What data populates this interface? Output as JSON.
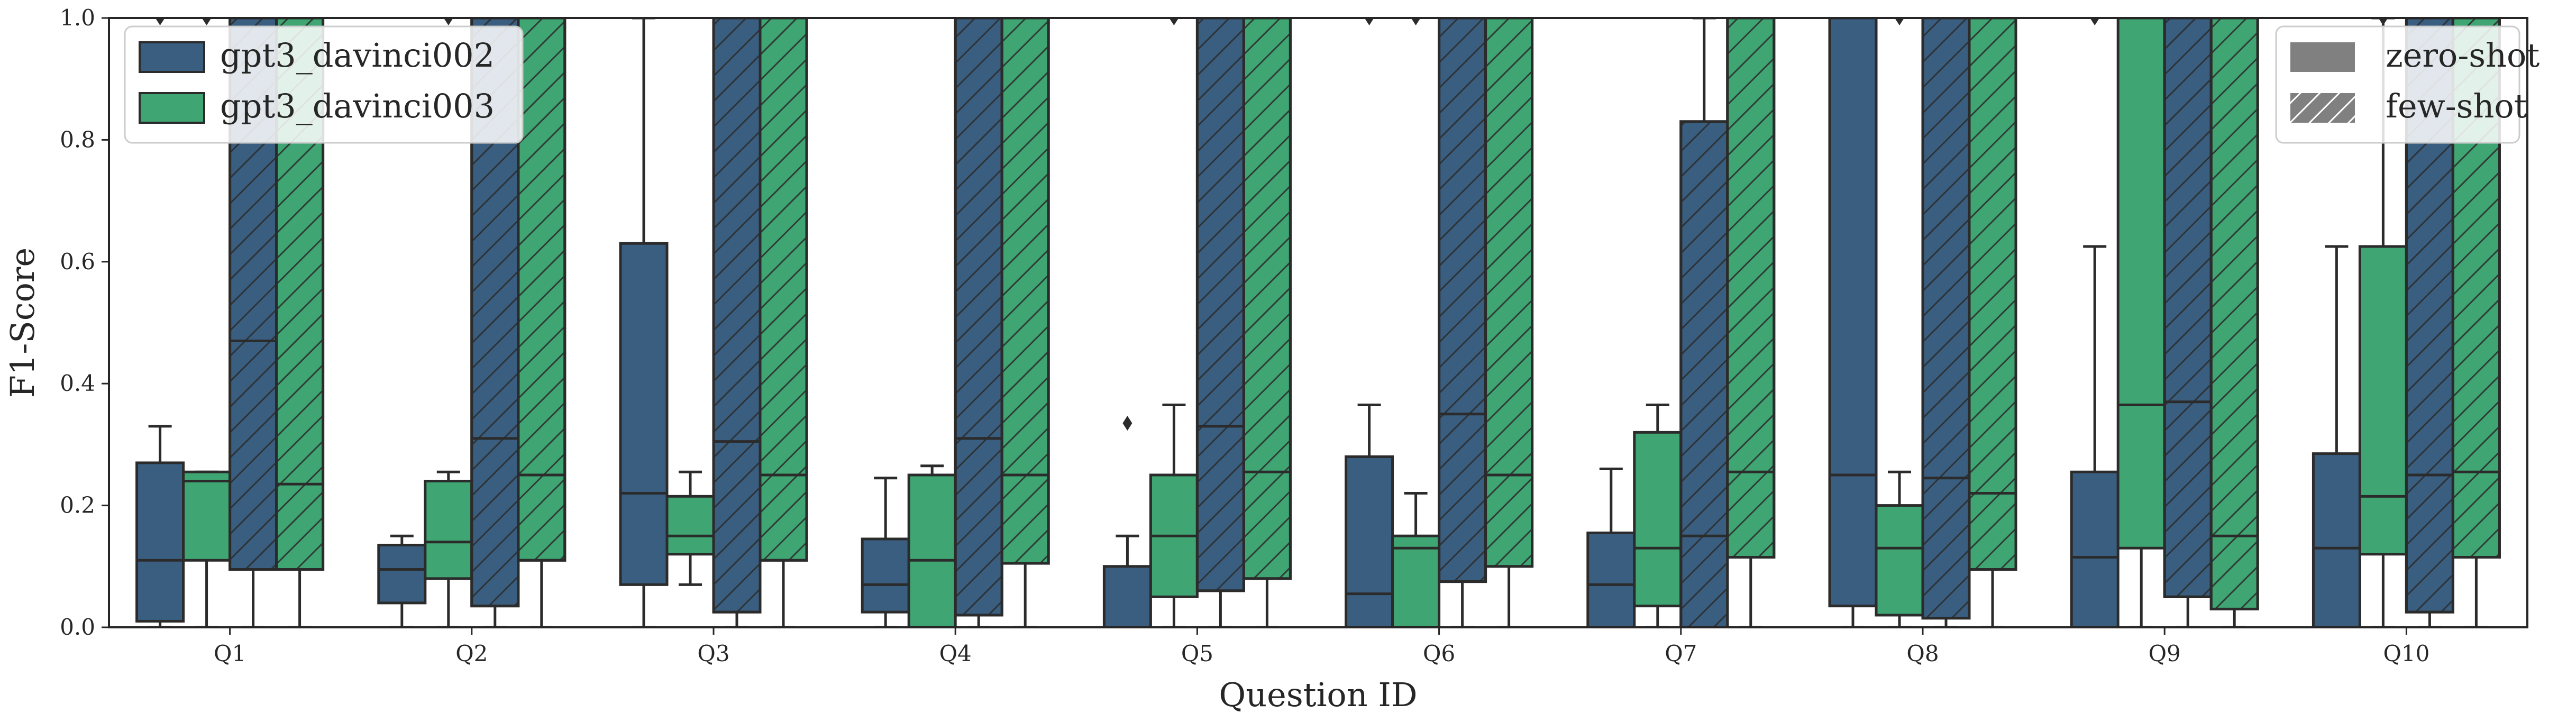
{
  "chart_data": {
    "type": "box",
    "xlabel": "Question ID",
    "ylabel": "F1-Score",
    "ylim": [
      0,
      1
    ],
    "yticks": [
      "0.0",
      "0.2",
      "0.4",
      "0.6",
      "0.8",
      "1.0"
    ],
    "categories": [
      "Q1",
      "Q2",
      "Q3",
      "Q4",
      "Q5",
      "Q6",
      "Q7",
      "Q8",
      "Q9",
      "Q10"
    ],
    "grid": false,
    "legend_models": {
      "placement": "top-left",
      "entries": [
        {
          "name": "gpt3_davinci002",
          "color": "#3a5e80"
        },
        {
          "name": "gpt3_davinci003",
          "color": "#3fa673"
        }
      ]
    },
    "legend_setting": {
      "placement": "top-right",
      "entries": [
        {
          "name": "zero-shot",
          "pattern": "solid"
        },
        {
          "name": "few-shot",
          "pattern": "hatched"
        }
      ]
    },
    "series": [
      {
        "model": "gpt3_davinci002",
        "setting": "zero-shot",
        "boxes": [
          {
            "whislo": 0.0,
            "q1": 0.01,
            "med": 0.11,
            "q3": 0.27,
            "whishi": 0.33,
            "fliers": [
              1.0
            ]
          },
          {
            "whislo": 0.0,
            "q1": 0.04,
            "med": 0.095,
            "q3": 0.135,
            "whishi": 0.15,
            "fliers": []
          },
          {
            "whislo": 0.0,
            "q1": 0.07,
            "med": 0.22,
            "q3": 0.63,
            "whishi": 1.0,
            "fliers": []
          },
          {
            "whislo": 0.0,
            "q1": 0.025,
            "med": 0.07,
            "q3": 0.145,
            "whishi": 0.245,
            "fliers": []
          },
          {
            "whislo": 0.0,
            "q1": 0.0,
            "med": 0.0,
            "q3": 0.1,
            "whishi": 0.15,
            "fliers": [
              0.335
            ]
          },
          {
            "whislo": 0.0,
            "q1": 0.0,
            "med": 0.055,
            "q3": 0.28,
            "whishi": 0.365,
            "fliers": [
              1.0
            ]
          },
          {
            "whislo": 0.0,
            "q1": 0.0,
            "med": 0.07,
            "q3": 0.155,
            "whishi": 0.26,
            "fliers": []
          },
          {
            "whislo": 0.0,
            "q1": 0.035,
            "med": 0.25,
            "q3": 1.0,
            "whishi": 1.0,
            "fliers": []
          },
          {
            "whislo": 0.0,
            "q1": 0.0,
            "med": 0.115,
            "q3": 0.255,
            "whishi": 0.625,
            "fliers": [
              1.0
            ]
          },
          {
            "whislo": 0.0,
            "q1": 0.0,
            "med": 0.13,
            "q3": 0.285,
            "whishi": 0.625,
            "fliers": []
          }
        ]
      },
      {
        "model": "gpt3_davinci003",
        "setting": "zero-shot",
        "boxes": [
          {
            "whislo": 0.0,
            "q1": 0.11,
            "med": 0.24,
            "q3": 0.255,
            "whishi": 0.255,
            "fliers": [
              1.0
            ]
          },
          {
            "whislo": 0.0,
            "q1": 0.08,
            "med": 0.14,
            "q3": 0.24,
            "whishi": 0.255,
            "fliers": [
              1.0
            ]
          },
          {
            "whislo": 0.07,
            "q1": 0.12,
            "med": 0.15,
            "q3": 0.215,
            "whishi": 0.255,
            "fliers": []
          },
          {
            "whislo": 0.0,
            "q1": 0.0,
            "med": 0.11,
            "q3": 0.25,
            "whishi": 0.265,
            "fliers": []
          },
          {
            "whislo": 0.0,
            "q1": 0.05,
            "med": 0.15,
            "q3": 0.25,
            "whishi": 0.365,
            "fliers": [
              1.0
            ]
          },
          {
            "whislo": 0.0,
            "q1": 0.0,
            "med": 0.13,
            "q3": 0.15,
            "whishi": 0.22,
            "fliers": [
              1.0
            ]
          },
          {
            "whislo": 0.0,
            "q1": 0.035,
            "med": 0.13,
            "q3": 0.32,
            "whishi": 0.365,
            "fliers": []
          },
          {
            "whislo": 0.0,
            "q1": 0.02,
            "med": 0.13,
            "q3": 0.2,
            "whishi": 0.255,
            "fliers": [
              1.0
            ]
          },
          {
            "whislo": 0.0,
            "q1": 0.13,
            "med": 0.365,
            "q3": 1.0,
            "whishi": 1.0,
            "fliers": []
          },
          {
            "whislo": 0.0,
            "q1": 0.12,
            "med": 0.215,
            "q3": 0.625,
            "whishi": 1.0,
            "fliers": [
              1.0
            ]
          }
        ]
      },
      {
        "model": "gpt3_davinci002",
        "setting": "few-shot",
        "boxes": [
          {
            "whislo": 0.0,
            "q1": 0.095,
            "med": 0.47,
            "q3": 1.0,
            "whishi": 1.0,
            "fliers": []
          },
          {
            "whislo": 0.0,
            "q1": 0.035,
            "med": 0.31,
            "q3": 1.0,
            "whishi": 1.0,
            "fliers": []
          },
          {
            "whislo": 0.0,
            "q1": 0.025,
            "med": 0.305,
            "q3": 1.0,
            "whishi": 1.0,
            "fliers": []
          },
          {
            "whislo": 0.0,
            "q1": 0.02,
            "med": 0.31,
            "q3": 1.0,
            "whishi": 1.0,
            "fliers": []
          },
          {
            "whislo": 0.0,
            "q1": 0.06,
            "med": 0.33,
            "q3": 1.0,
            "whishi": 1.0,
            "fliers": []
          },
          {
            "whislo": 0.0,
            "q1": 0.075,
            "med": 0.35,
            "q3": 1.0,
            "whishi": 1.0,
            "fliers": []
          },
          {
            "whislo": 0.0,
            "q1": 0.0,
            "med": 0.15,
            "q3": 0.83,
            "whishi": 1.0,
            "fliers": []
          },
          {
            "whislo": 0.0,
            "q1": 0.015,
            "med": 0.245,
            "q3": 1.0,
            "whishi": 1.0,
            "fliers": []
          },
          {
            "whislo": 0.0,
            "q1": 0.05,
            "med": 0.37,
            "q3": 1.0,
            "whishi": 1.0,
            "fliers": []
          },
          {
            "whislo": 0.0,
            "q1": 0.025,
            "med": 0.25,
            "q3": 1.0,
            "whishi": 1.0,
            "fliers": []
          }
        ]
      },
      {
        "model": "gpt3_davinci003",
        "setting": "few-shot",
        "boxes": [
          {
            "whislo": 0.0,
            "q1": 0.095,
            "med": 0.235,
            "q3": 1.0,
            "whishi": 1.0,
            "fliers": []
          },
          {
            "whislo": 0.0,
            "q1": 0.11,
            "med": 0.25,
            "q3": 1.0,
            "whishi": 1.0,
            "fliers": []
          },
          {
            "whislo": 0.0,
            "q1": 0.11,
            "med": 0.25,
            "q3": 1.0,
            "whishi": 1.0,
            "fliers": []
          },
          {
            "whislo": 0.0,
            "q1": 0.105,
            "med": 0.25,
            "q3": 1.0,
            "whishi": 1.0,
            "fliers": []
          },
          {
            "whislo": 0.0,
            "q1": 0.08,
            "med": 0.255,
            "q3": 1.0,
            "whishi": 1.0,
            "fliers": []
          },
          {
            "whislo": 0.0,
            "q1": 0.1,
            "med": 0.25,
            "q3": 1.0,
            "whishi": 1.0,
            "fliers": []
          },
          {
            "whislo": 0.0,
            "q1": 0.115,
            "med": 0.255,
            "q3": 1.0,
            "whishi": 1.0,
            "fliers": []
          },
          {
            "whislo": 0.0,
            "q1": 0.095,
            "med": 0.22,
            "q3": 1.0,
            "whishi": 1.0,
            "fliers": []
          },
          {
            "whislo": 0.0,
            "q1": 0.03,
            "med": 0.15,
            "q3": 1.0,
            "whishi": 1.0,
            "fliers": []
          },
          {
            "whislo": 0.0,
            "q1": 0.115,
            "med": 0.255,
            "q3": 1.0,
            "whishi": 1.0,
            "fliers": []
          }
        ]
      }
    ]
  }
}
